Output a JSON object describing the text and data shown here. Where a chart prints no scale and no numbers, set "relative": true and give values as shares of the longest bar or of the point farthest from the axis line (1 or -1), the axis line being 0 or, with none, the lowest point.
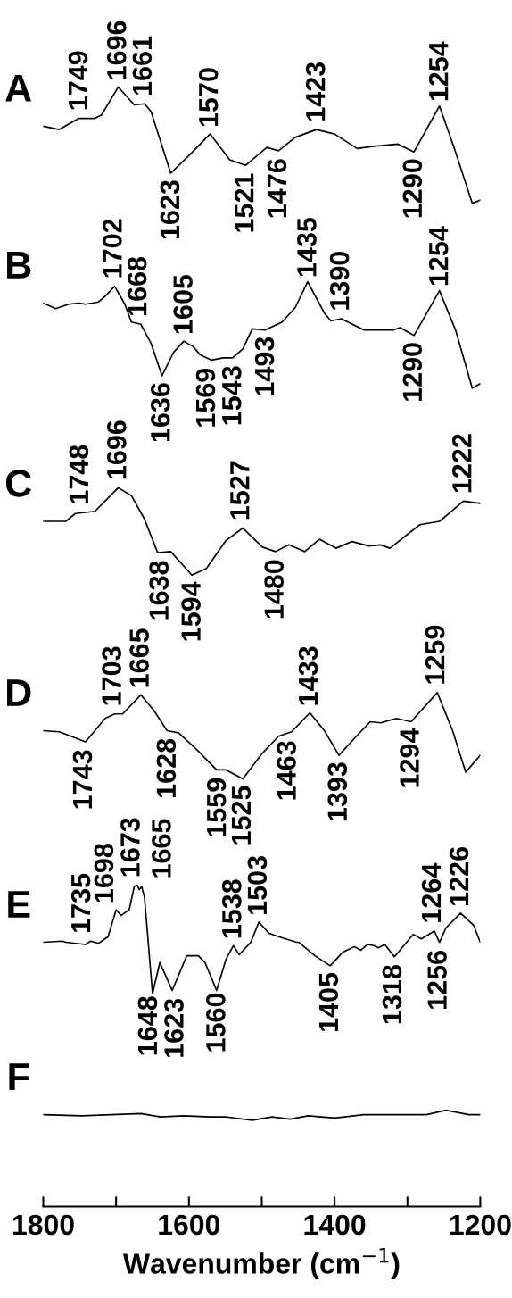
{
  "chart_data": {
    "type": "line",
    "relative": true,
    "xlabel": "Wavenumber (cm$^{−1}$)",
    "xlim": [
      1800,
      1200
    ],
    "xticks": [
      1800,
      {
        "value": 1700,
        "label": null
      },
      1600,
      {
        "value": 1500,
        "label": null
      },
      1400,
      {
        "value": 1300,
        "label": null
      },
      1200
    ],
    "tick_labels": "x",
    "series": [
      {
        "name": "A",
        "color": "#000000",
        "x": [
          1800,
          1778,
          1751,
          1729,
          1720,
          1697,
          1675,
          1661,
          1652,
          1625,
          1598,
          1571,
          1544,
          1522,
          1493,
          1477,
          1454,
          1425,
          1400,
          1369,
          1346,
          1313,
          1291,
          1256,
          1236,
          1211,
          1200
        ],
        "values": [
          0.965,
          0.962,
          0.972,
          0.972,
          0.975,
          1.0,
          0.984,
          0.985,
          0.978,
          0.923,
          0.94,
          0.958,
          0.935,
          0.93,
          0.946,
          0.943,
          0.955,
          0.962,
          0.958,
          0.945,
          0.947,
          0.949,
          0.942,
          0.983,
          0.946,
          0.896,
          0.899
        ]
      },
      {
        "name": "B",
        "color": "#000000",
        "x": [
          1800,
          1783,
          1765,
          1751,
          1742,
          1724,
          1715,
          1702,
          1688,
          1679,
          1666,
          1652,
          1637,
          1621,
          1607,
          1594,
          1585,
          1569,
          1553,
          1540,
          1526,
          1513,
          1495,
          1472,
          1454,
          1437,
          1414,
          1405,
          1391,
          1360,
          1319,
          1310,
          1291,
          1256,
          1234,
          1211,
          1200
        ],
        "values": [
          0.807,
          0.802,
          0.806,
          0.807,
          0.806,
          0.808,
          0.813,
          0.822,
          0.806,
          0.79,
          0.788,
          0.771,
          0.742,
          0.763,
          0.773,
          0.768,
          0.761,
          0.756,
          0.758,
          0.758,
          0.766,
          0.784,
          0.783,
          0.79,
          0.803,
          0.826,
          0.798,
          0.791,
          0.793,
          0.783,
          0.783,
          0.785,
          0.778,
          0.818,
          0.783,
          0.731,
          0.735
        ]
      },
      {
        "name": "C",
        "color": "#000000",
        "x": [
          1800,
          1769,
          1756,
          1729,
          1697,
          1679,
          1661,
          1643,
          1625,
          1596,
          1576,
          1549,
          1526,
          1499,
          1481,
          1463,
          1441,
          1421,
          1398,
          1376,
          1353,
          1337,
          1324,
          1283,
          1256,
          1223,
          1200
        ],
        "values": [
          0.612,
          0.612,
          0.619,
          0.621,
          0.642,
          0.635,
          0.614,
          0.584,
          0.585,
          0.564,
          0.57,
          0.595,
          0.606,
          0.589,
          0.585,
          0.591,
          0.585,
          0.596,
          0.588,
          0.594,
          0.59,
          0.591,
          0.588,
          0.609,
          0.612,
          0.63,
          0.628
        ]
      },
      {
        "name": "D",
        "color": "#000000",
        "x": [
          1800,
          1778,
          1742,
          1715,
          1702,
          1691,
          1666,
          1648,
          1630,
          1614,
          1589,
          1562,
          1549,
          1526,
          1499,
          1477,
          1459,
          1434,
          1414,
          1394,
          1373,
          1351,
          1337,
          1315,
          1295,
          1259,
          1238,
          1220,
          1200
        ],
        "values": [
          0.425,
          0.424,
          0.415,
          0.436,
          0.44,
          0.44,
          0.457,
          0.443,
          0.425,
          0.423,
          0.408,
          0.39,
          0.39,
          0.382,
          0.405,
          0.42,
          0.424,
          0.441,
          0.425,
          0.403,
          0.418,
          0.433,
          0.432,
          0.436,
          0.433,
          0.459,
          0.425,
          0.388,
          0.403
        ]
      },
      {
        "name": "E",
        "color": "#000000",
        "x": [
          1800,
          1774,
          1769,
          1742,
          1735,
          1724,
          1711,
          1700,
          1693,
          1682,
          1675,
          1671,
          1668,
          1665,
          1661,
          1650,
          1640,
          1623,
          1603,
          1587,
          1578,
          1562,
          1549,
          1539,
          1531,
          1515,
          1504,
          1490,
          1472,
          1452,
          1449,
          1427,
          1406,
          1389,
          1373,
          1364,
          1355,
          1346,
          1340,
          1331,
          1318,
          1301,
          1292,
          1281,
          1263,
          1256,
          1247,
          1227,
          1209,
          1200
        ],
        "values": [
          0.236,
          0.237,
          0.236,
          0.234,
          0.237,
          0.235,
          0.241,
          0.265,
          0.26,
          0.265,
          0.286,
          0.287,
          0.283,
          0.286,
          0.276,
          0.19,
          0.218,
          0.193,
          0.224,
          0.224,
          0.218,
          0.193,
          0.221,
          0.233,
          0.225,
          0.236,
          0.254,
          0.244,
          0.24,
          0.236,
          0.236,
          0.224,
          0.215,
          0.227,
          0.232,
          0.229,
          0.234,
          0.233,
          0.231,
          0.234,
          0.223,
          0.236,
          0.243,
          0.239,
          0.246,
          0.236,
          0.249,
          0.262,
          0.251,
          0.236
        ]
      },
      {
        "name": "F",
        "color": "#000000",
        "x": [
          1800,
          1747,
          1666,
          1639,
          1607,
          1571,
          1549,
          1513,
          1486,
          1461,
          1436,
          1400,
          1360,
          1288,
          1274,
          1247,
          1216,
          1200
        ],
        "values": [
          0.082,
          0.081,
          0.083,
          0.08,
          0.081,
          0.08,
          0.08,
          0.077,
          0.08,
          0.078,
          0.081,
          0.079,
          0.082,
          0.082,
          0.082,
          0.086,
          0.082,
          0.082
        ]
      }
    ],
    "annotations": [
      {
        "text": "1749",
        "x": 1749,
        "y": 0.972
      },
      {
        "text": "1696",
        "x": 1696,
        "y": 0.999
      },
      {
        "text": "1661",
        "x": 1661,
        "y": 0.985
      },
      {
        "text": "1570",
        "x": 1570,
        "y": 0.957
      },
      {
        "text": "1423",
        "x": 1423,
        "y": 0.962
      },
      {
        "text": "1254",
        "x": 1254,
        "y": 0.98
      },
      {
        "text": "1623",
        "x": 1623,
        "y": 0.924
      },
      {
        "text": "1521",
        "x": 1521,
        "y": 0.93
      },
      {
        "text": "1476",
        "x": 1476,
        "y": 0.943
      },
      {
        "text": "1290",
        "x": 1290,
        "y": 0.943
      },
      {
        "text": "1702",
        "x": 1702,
        "y": 0.822
      },
      {
        "text": "1668",
        "x": 1668,
        "y": 0.788
      },
      {
        "text": "1605",
        "x": 1605,
        "y": 0.772
      },
      {
        "text": "1435",
        "x": 1435,
        "y": 0.823
      },
      {
        "text": "1390",
        "x": 1390,
        "y": 0.793
      },
      {
        "text": "1254",
        "x": 1254,
        "y": 0.815
      },
      {
        "text": "1636",
        "x": 1636,
        "y": 0.743
      },
      {
        "text": "1569",
        "x": 1569,
        "y": 0.756
      },
      {
        "text": "1543",
        "x": 1543,
        "y": 0.758
      },
      {
        "text": "1493",
        "x": 1493,
        "y": 0.784
      },
      {
        "text": "1290",
        "x": 1290,
        "y": 0.779
      },
      {
        "text": "1748",
        "x": 1748,
        "y": 0.62
      },
      {
        "text": "1696",
        "x": 1696,
        "y": 0.642
      },
      {
        "text": "1527",
        "x": 1527,
        "y": 0.606
      },
      {
        "text": "1222",
        "x": 1222,
        "y": 0.63
      },
      {
        "text": "1638",
        "x": 1638,
        "y": 0.584
      },
      {
        "text": "1594",
        "x": 1594,
        "y": 0.565
      },
      {
        "text": "1480",
        "x": 1480,
        "y": 0.585
      },
      {
        "text": "1703",
        "x": 1703,
        "y": 0.44
      },
      {
        "text": "1665",
        "x": 1665,
        "y": 0.456
      },
      {
        "text": "1433",
        "x": 1433,
        "y": 0.44
      },
      {
        "text": "1259",
        "x": 1259,
        "y": 0.459
      },
      {
        "text": "1743",
        "x": 1743,
        "y": 0.415
      },
      {
        "text": "1628",
        "x": 1628,
        "y": 0.425
      },
      {
        "text": "1559",
        "x": 1559,
        "y": 0.39
      },
      {
        "text": "1525",
        "x": 1525,
        "y": 0.383
      },
      {
        "text": "1463",
        "x": 1463,
        "y": 0.423
      },
      {
        "text": "1393",
        "x": 1393,
        "y": 0.404
      },
      {
        "text": "1294",
        "x": 1294,
        "y": 0.434
      },
      {
        "text": "1735",
        "x": 1735,
        "y": 0.237
      },
      {
        "text": "1698",
        "x": 1698,
        "y": 0.264
      },
      {
        "text": "1673",
        "x": 1673,
        "y": 0.287
      },
      {
        "text": "1665",
        "x": 1665,
        "y": 0.286
      },
      {
        "text": "1538",
        "x": 1538,
        "y": 0.232
      },
      {
        "text": "1503",
        "x": 1503,
        "y": 0.253
      },
      {
        "text": "1264",
        "x": 1264,
        "y": 0.246
      },
      {
        "text": "1226",
        "x": 1226,
        "y": 0.261
      },
      {
        "text": "1648",
        "x": 1648,
        "y": 0.195
      },
      {
        "text": "1623",
        "x": 1623,
        "y": 0.193
      },
      {
        "text": "1560",
        "x": 1560,
        "y": 0.198
      },
      {
        "text": "1405",
        "x": 1405,
        "y": 0.216
      },
      {
        "text": "1318",
        "x": 1318,
        "y": 0.223
      },
      {
        "text": "1256",
        "x": 1256,
        "y": 0.236
      }
    ]
  }
}
